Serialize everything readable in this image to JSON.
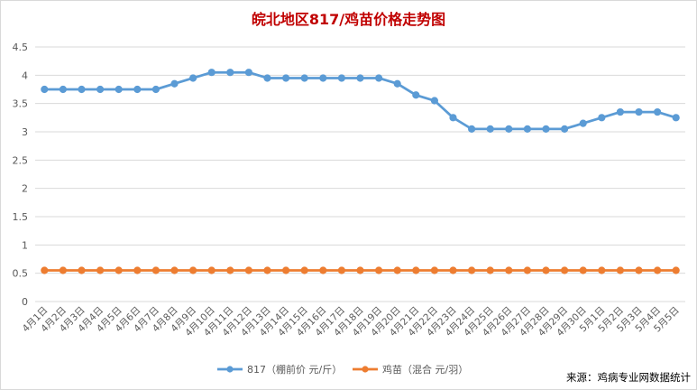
{
  "chart_data": {
    "type": "line",
    "title": "皖北地区817/鸡苗价格走势图",
    "xlabel": "",
    "ylabel": "",
    "ylim": [
      0,
      4.5
    ],
    "yticks": [
      "0",
      "0.5",
      "1",
      "1.5",
      "2",
      "2.5",
      "3",
      "3.5",
      "4",
      "4.5"
    ],
    "ytick_values": [
      0,
      0.5,
      1,
      1.5,
      2,
      2.5,
      3,
      3.5,
      4,
      4.5
    ],
    "grid": true,
    "legend_position": "bottom",
    "categories": [
      "4月1日",
      "4月2日",
      "4月3日",
      "4月4日",
      "4月5日",
      "4月6日",
      "4月7日",
      "4月8日",
      "4月9日",
      "4月10日",
      "4月11日",
      "4月12日",
      "4月13日",
      "4月14日",
      "4月15日",
      "4月16日",
      "4月17日",
      "4月18日",
      "4月19日",
      "4月20日",
      "4月21日",
      "4月22日",
      "4月23日",
      "4月24日",
      "4月25日",
      "4月26日",
      "4月27日",
      "4月28日",
      "4月29日",
      "4月30日",
      "5月1日",
      "5月2日",
      "5月3日",
      "5月4日",
      "5月5日"
    ],
    "series": [
      {
        "name": "817（棚前价 元/斤）",
        "color": "#5B9BD5",
        "values": [
          3.75,
          3.75,
          3.75,
          3.75,
          3.75,
          3.75,
          3.75,
          3.85,
          3.95,
          4.05,
          4.05,
          4.05,
          3.95,
          3.95,
          3.95,
          3.95,
          3.95,
          3.95,
          3.95,
          3.85,
          3.65,
          3.55,
          3.25,
          3.05,
          3.05,
          3.05,
          3.05,
          3.05,
          3.05,
          3.15,
          3.25,
          3.35,
          3.35,
          3.35,
          3.25
        ]
      },
      {
        "name": "鸡苗（混合 元/羽）",
        "color": "#ED7D31",
        "values": [
          0.55,
          0.55,
          0.55,
          0.55,
          0.55,
          0.55,
          0.55,
          0.55,
          0.55,
          0.55,
          0.55,
          0.55,
          0.55,
          0.55,
          0.55,
          0.55,
          0.55,
          0.55,
          0.55,
          0.55,
          0.55,
          0.55,
          0.55,
          0.55,
          0.55,
          0.55,
          0.55,
          0.55,
          0.55,
          0.55,
          0.55,
          0.55,
          0.55,
          0.55,
          0.55
        ]
      }
    ],
    "source_note": "来源：鸡病专业网数据统计"
  },
  "colors": {
    "title": "#C00000",
    "grid": "#D9D9D9",
    "axis_text": "#595959",
    "source_text": "#000000"
  }
}
